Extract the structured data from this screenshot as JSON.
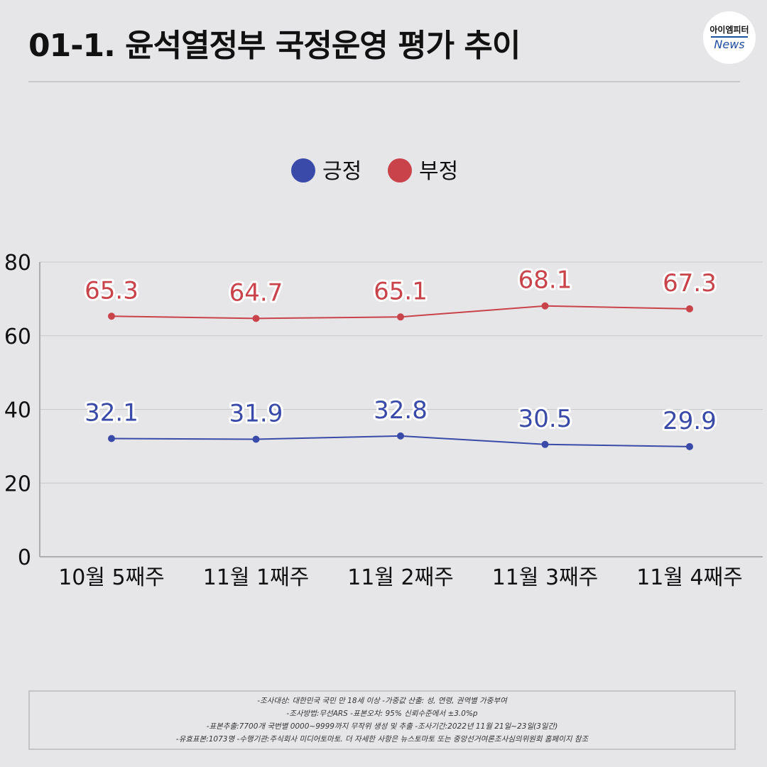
{
  "title": "01-1. 윤석열정부 국정운영 평가 추이",
  "logo": {
    "top": "아이엠피터",
    "bottom": "News"
  },
  "footnote": [
    "-조사대상: 대한민국 국민 만 18세 이상  -가중값 산출: 성, 연령, 권역별 가중부여",
    "-조사방법:무선ARS -표본오차: 95% 신뢰수준에서 ±3.0%p",
    "-표본추출:7700개 국번별 0000~9999까지 무작위 생성 및 추출 -조사기간:2022년 11월 21일~23일(3일간)",
    "-유효표본:1073명 -수행기관:주식회사 미디어토마토. 더 자세한 사항은 뉴스토마토 또는 중앙선거여론조사심의위원회 홈페이지 참조"
  ],
  "chart_data": {
    "type": "line",
    "title": "01-1. 윤석열정부 국정운영 평가 추이",
    "categories": [
      "10월 5째주",
      "11월 1째주",
      "11월 2째주",
      "11월 3째주",
      "11월 4째주"
    ],
    "series": [
      {
        "name": "긍정",
        "color": "#3a4aa8",
        "values": [
          32.1,
          31.9,
          32.8,
          30.5,
          29.9
        ]
      },
      {
        "name": "부정",
        "color": "#c9434a",
        "values": [
          65.3,
          64.7,
          65.1,
          68.1,
          67.3
        ]
      }
    ],
    "yticks": [
      0,
      20,
      40,
      60,
      80
    ],
    "ylim": [
      0,
      80
    ],
    "xlabel": "",
    "ylabel": "",
    "grid": true,
    "legend": "top-center",
    "data_labels": true
  }
}
